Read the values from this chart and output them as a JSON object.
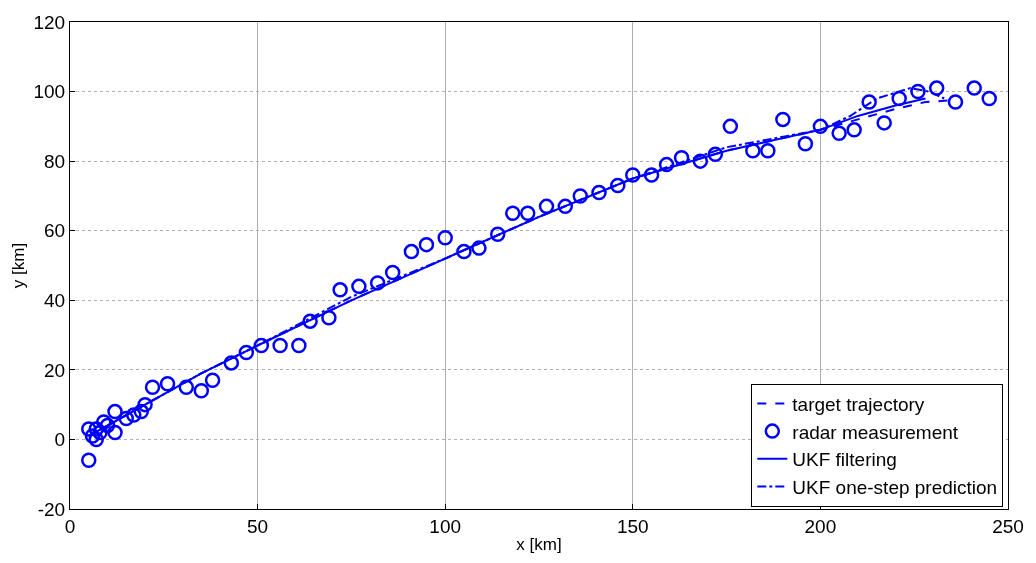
{
  "chart_data": {
    "type": "line",
    "xlabel": "x [km]",
    "ylabel": "y [km]",
    "xlim": [
      0,
      250
    ],
    "xticks": [
      0,
      50,
      100,
      150,
      200,
      250
    ],
    "ylim": [
      -20,
      120
    ],
    "yticks": [
      -20,
      0,
      20,
      40,
      60,
      80,
      100,
      120
    ],
    "grid": true,
    "legend": "bottom right",
    "series": [
      {
        "name": "target trajectory",
        "line_style": "dashed",
        "color": "#0000ff",
        "x": [
          5,
          10,
          20,
          35,
          50,
          75,
          100,
          125,
          150,
          175,
          200,
          210,
          220,
          228,
          235
        ],
        "values": [
          1,
          4,
          10,
          19,
          27,
          40,
          52,
          64,
          75,
          83,
          89,
          92,
          95,
          97,
          97.5
        ]
      },
      {
        "name": "radar measurement",
        "type": "scatter",
        "marker": "circle",
        "color": "#0000ff",
        "x": [
          5,
          5,
          6,
          7,
          7,
          8,
          9,
          10,
          12,
          12,
          15,
          17,
          19,
          20,
          22,
          26,
          31,
          35,
          38,
          43,
          47,
          51,
          56,
          61,
          64,
          69,
          72,
          77,
          82,
          86,
          91,
          95,
          100,
          105,
          109,
          114,
          118,
          122,
          127,
          132,
          136,
          141,
          146,
          150,
          155,
          159,
          163,
          168,
          172,
          176,
          182,
          186,
          190,
          196,
          200,
          205,
          209,
          213,
          217,
          221,
          226,
          231,
          236,
          241,
          245
        ],
        "values": [
          3,
          -6,
          1,
          0,
          3,
          2,
          5,
          4,
          8,
          2,
          6,
          7,
          8,
          10,
          15,
          16,
          15,
          14,
          17,
          22,
          25,
          27,
          27,
          27,
          34,
          35,
          43,
          44,
          45,
          48,
          54,
          56,
          58,
          54,
          55,
          59,
          65,
          65,
          67,
          67,
          70,
          71,
          73,
          76,
          76,
          79,
          81,
          80,
          82,
          90,
          83,
          83,
          92,
          85,
          90,
          88,
          89,
          97,
          91,
          98,
          100,
          101,
          97,
          101,
          98
        ]
      },
      {
        "name": "UKF filtering",
        "line_style": "solid",
        "color": "#0000ff",
        "x": [
          5,
          10,
          20,
          35,
          50,
          75,
          100,
          125,
          150,
          175,
          200,
          210,
          220,
          228
        ],
        "values": [
          1,
          4,
          10,
          19,
          27,
          40,
          52,
          64,
          75,
          83,
          89,
          93,
          96,
          98
        ]
      },
      {
        "name": "UKF one-step prediction",
        "line_style": "dashdot",
        "color": "#0000ff",
        "x": [
          5,
          10,
          20,
          35,
          50,
          75,
          100,
          125,
          150,
          175,
          200,
          208,
          215,
          224,
          229,
          233
        ],
        "values": [
          1,
          4,
          10,
          19,
          27,
          41,
          52,
          64,
          75,
          84,
          89,
          93,
          98,
          101,
          100,
          98
        ]
      }
    ]
  }
}
